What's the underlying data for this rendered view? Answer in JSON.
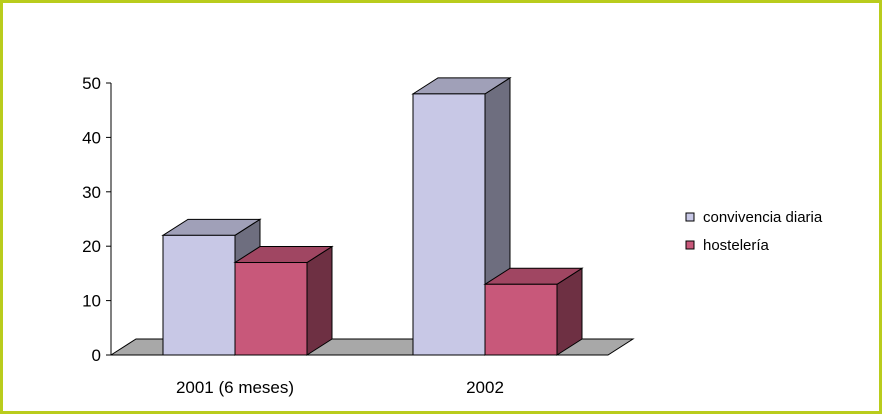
{
  "chart_data": {
    "type": "bar",
    "categories": [
      "2001 (6 meses)",
      "2002"
    ],
    "series": [
      {
        "name": "convivencia diaria",
        "values": [
          22,
          48
        ],
        "color": "#c8c8e6"
      },
      {
        "name": "hostelería",
        "values": [
          17,
          13
        ],
        "color": "#c8587a"
      }
    ],
    "ylim": [
      0,
      50
    ],
    "yticks": [
      0,
      10,
      20,
      30,
      40,
      50
    ],
    "grid": false,
    "three_d": true,
    "legend": "right",
    "border_color": "#b9cc1c",
    "floor_color": "#a8a8a8"
  }
}
